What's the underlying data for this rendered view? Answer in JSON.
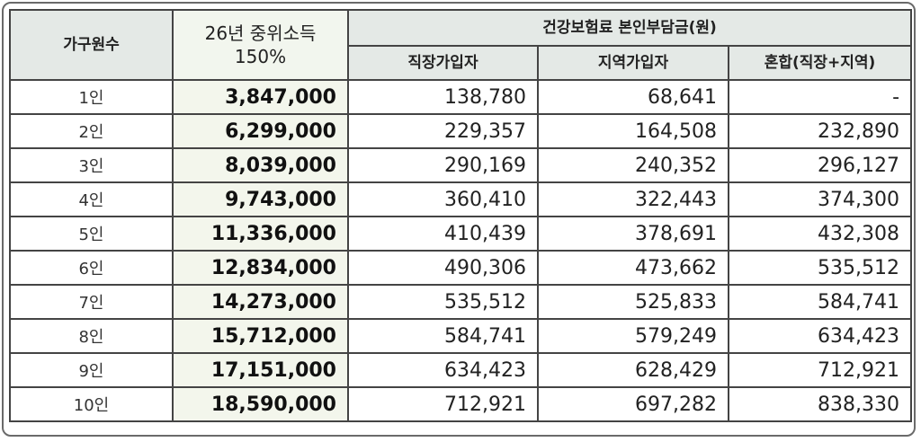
{
  "headers": {
    "household": "가구원수",
    "income_line1": "26년 중위소득",
    "income_line2": "150%",
    "insurance": "건강보험료 본인부담금(원)",
    "employee": "직장가입자",
    "regional": "지역가입자",
    "mixed": "혼합(직장+지역)"
  },
  "rows": [
    {
      "household": "1인",
      "income": "3,847,000",
      "employee": "138,780",
      "regional": "68,641",
      "mixed": "-"
    },
    {
      "household": "2인",
      "income": "6,299,000",
      "employee": "229,357",
      "regional": "164,508",
      "mixed": "232,890"
    },
    {
      "household": "3인",
      "income": "8,039,000",
      "employee": "290,169",
      "regional": "240,352",
      "mixed": "296,127"
    },
    {
      "household": "4인",
      "income": "9,743,000",
      "employee": "360,410",
      "regional": "322,443",
      "mixed": "374,300"
    },
    {
      "household": "5인",
      "income": "11,336,000",
      "employee": "410,439",
      "regional": "378,691",
      "mixed": "432,308"
    },
    {
      "household": "6인",
      "income": "12,834,000",
      "employee": "490,306",
      "regional": "473,662",
      "mixed": "535,512"
    },
    {
      "household": "7인",
      "income": "14,273,000",
      "employee": "535,512",
      "regional": "525,833",
      "mixed": "584,741"
    },
    {
      "household": "8인",
      "income": "15,712,000",
      "employee": "584,741",
      "regional": "579,249",
      "mixed": "634,423"
    },
    {
      "household": "9인",
      "income": "17,151,000",
      "employee": "634,423",
      "regional": "628,429",
      "mixed": "712,921"
    },
    {
      "household": "10인",
      "income": "18,590,000",
      "employee": "712,921",
      "regional": "697,282",
      "mixed": "838,330"
    }
  ]
}
